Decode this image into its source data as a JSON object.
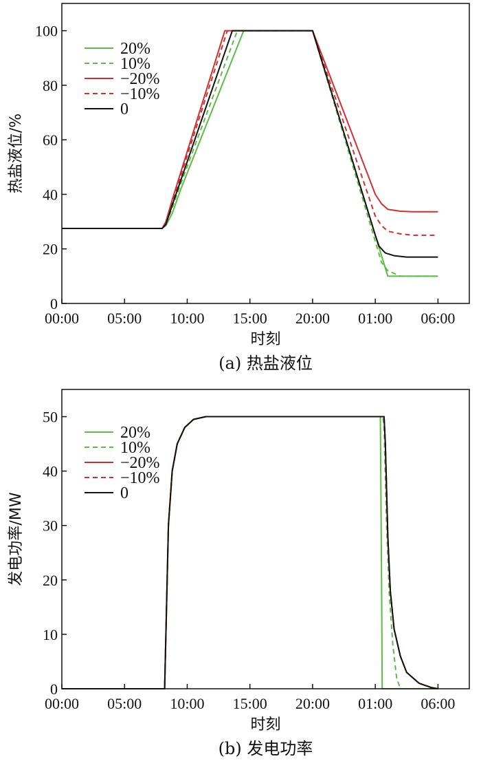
{
  "chart_data": [
    {
      "type": "line",
      "title": "",
      "caption": "(a) 热盐液位",
      "xlabel": "时刻",
      "ylabel": "热盐液位/%",
      "x_tick_labels": [
        "00:00",
        "05:00",
        "10:00",
        "15:00",
        "20:00",
        "01:00",
        "06:00"
      ],
      "x_ticks_hours": [
        0,
        5,
        10,
        15,
        20,
        25,
        30
      ],
      "xlim_hours": [
        0,
        32.5
      ],
      "ylim": [
        0,
        110
      ],
      "y_ticks": [
        0,
        20,
        40,
        60,
        80,
        100
      ],
      "grid": false,
      "legend_position": "top-left",
      "series": [
        {
          "name": "20%",
          "color": "#5bbb44",
          "dash": "solid",
          "x": [
            0,
            8,
            8.3,
            8.8,
            9.5,
            14.5,
            20,
            26,
            30
          ],
          "values": [
            27.5,
            27.5,
            28.5,
            33,
            42,
            100,
            100,
            10,
            10
          ]
        },
        {
          "name": "10%",
          "color": "#5bbb44",
          "dash": "dashed",
          "x": [
            0,
            8,
            8.3,
            8.8,
            9.5,
            14,
            20,
            25.5,
            26,
            26.5,
            27,
            30
          ],
          "values": [
            27.5,
            27.5,
            29,
            35,
            44,
            100,
            100,
            15,
            12,
            11,
            10,
            10
          ]
        },
        {
          "name": "−20%",
          "color": "#d12f2f",
          "dash": "solid",
          "x": [
            0,
            8,
            8.3,
            8.8,
            13,
            20,
            25,
            25.5,
            26,
            27,
            28,
            30
          ],
          "values": [
            27.5,
            27.5,
            30,
            38,
            100,
            100,
            40,
            36.5,
            34.5,
            33.8,
            33.6,
            33.6
          ]
        },
        {
          "name": "−10%",
          "color": "#d12f2f",
          "dash": "dashed",
          "x": [
            0,
            8,
            8.3,
            8.8,
            13.2,
            20,
            25,
            25.5,
            26,
            27,
            28,
            30
          ],
          "values": [
            27.5,
            27.5,
            29.5,
            37,
            100,
            100,
            32,
            28.5,
            26.5,
            25.5,
            25,
            25
          ]
        },
        {
          "name": "0",
          "color": "#111111",
          "dash": "solid",
          "x": [
            0,
            8,
            8.3,
            8.8,
            13.6,
            20,
            25,
            25.3,
            25.8,
            26.5,
            27.5,
            30
          ],
          "values": [
            27.5,
            27.5,
            29,
            36,
            100,
            100,
            25,
            21,
            18.5,
            17.5,
            17,
            17
          ]
        }
      ]
    },
    {
      "type": "line",
      "title": "",
      "caption": "(b) 发电功率",
      "xlabel": "时刻",
      "ylabel": "发电功率/MW",
      "x_tick_labels": [
        "00:00",
        "05:00",
        "10:00",
        "15:00",
        "20:00",
        "01:00",
        "06:00"
      ],
      "x_ticks_hours": [
        0,
        5,
        10,
        15,
        20,
        25,
        30
      ],
      "xlim_hours": [
        0,
        32.5
      ],
      "ylim": [
        0,
        55
      ],
      "y_ticks": [
        0,
        10,
        20,
        30,
        40,
        50
      ],
      "grid": false,
      "legend_position": "top-left",
      "series": [
        {
          "name": "20%",
          "color": "#5bbb44",
          "dash": "solid",
          "x": [
            0,
            8.2,
            8.5,
            8.8,
            9.2,
            9.8,
            10.5,
            11.5,
            13,
            20,
            25.4,
            25.5,
            25.55,
            30
          ],
          "values": [
            0,
            0,
            30,
            40,
            45,
            48,
            49.5,
            50,
            50,
            50,
            50,
            20,
            0,
            0
          ]
        },
        {
          "name": "10%",
          "color": "#5bbb44",
          "dash": "dashed",
          "x": [
            0,
            8.2,
            8.5,
            8.8,
            9.2,
            9.8,
            10.5,
            11.5,
            13,
            20,
            25.6,
            25.7,
            25.9,
            26.1,
            26.4,
            26.7,
            27
          ],
          "values": [
            0,
            0,
            30,
            40,
            45,
            48,
            49.5,
            50,
            50,
            50,
            50,
            48,
            30,
            18,
            8,
            2,
            0
          ]
        },
        {
          "name": "−20%",
          "color": "#d12f2f",
          "dash": "solid",
          "x": [
            0,
            8.2,
            8.5,
            8.8,
            9.2,
            9.8,
            10.5,
            11.5,
            13,
            20,
            25.7,
            25.8,
            26.0,
            26.2,
            26.5,
            27,
            27.5,
            28.5,
            29.5,
            30
          ],
          "values": [
            0,
            0,
            30,
            40,
            45,
            48,
            49.5,
            50,
            50,
            50,
            50,
            45,
            28,
            18,
            11,
            6,
            3,
            1,
            0.2,
            0
          ]
        },
        {
          "name": "−10%",
          "color": "#d12f2f",
          "dash": "dashed",
          "x": [
            0,
            8.2,
            8.5,
            8.8,
            9.2,
            9.8,
            10.5,
            11.5,
            13,
            20,
            25.7,
            25.8,
            26.0,
            26.2,
            26.5,
            27,
            27.5,
            28.5,
            29.5,
            30
          ],
          "values": [
            0,
            0,
            30,
            40,
            45,
            48,
            49.5,
            50,
            50,
            50,
            50,
            45,
            28,
            18,
            11,
            6,
            3,
            1,
            0.2,
            0
          ]
        },
        {
          "name": "0",
          "color": "#111111",
          "dash": "solid",
          "x": [
            0,
            8.2,
            8.5,
            8.8,
            9.2,
            9.8,
            10.5,
            11.5,
            13,
            20,
            25.7,
            25.8,
            26.0,
            26.2,
            26.5,
            27,
            27.5,
            28.5,
            29.5,
            30
          ],
          "values": [
            0,
            0,
            30,
            40,
            45,
            48,
            49.5,
            50,
            50,
            50,
            50,
            45,
            28,
            18,
            11,
            6,
            3,
            1,
            0.2,
            0
          ]
        }
      ]
    }
  ]
}
